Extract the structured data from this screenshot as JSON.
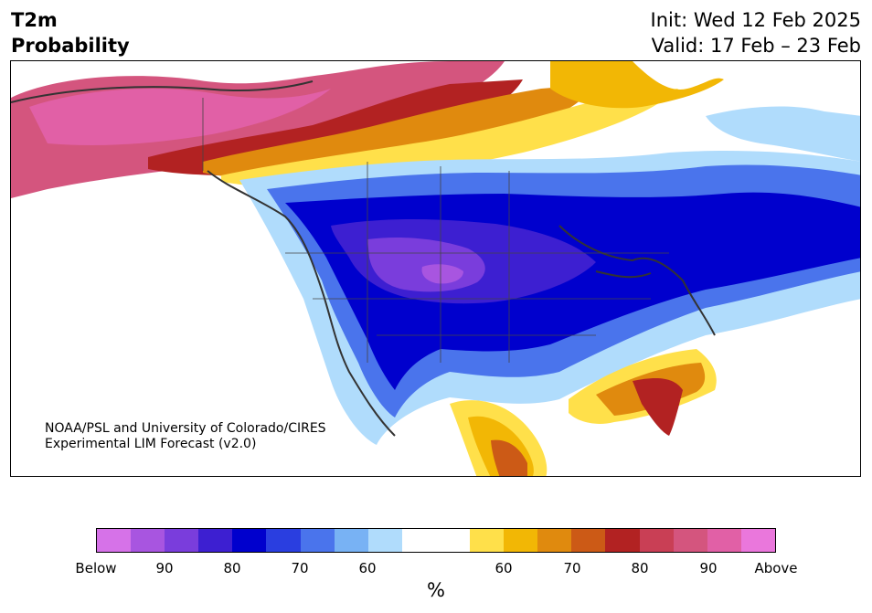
{
  "header": {
    "title_line1": "T2m",
    "title_line2": "Probability",
    "init": "Init: Wed 12 Feb 2025",
    "valid": "Valid: 17 Feb – 23 Feb"
  },
  "map": {
    "credit_line1": "NOAA/PSL and University of Colorado/CIRES",
    "credit_line2": "Experimental LIM Forecast (v2.0)",
    "region": "North America"
  },
  "colorbar": {
    "colors": [
      "#d672e8",
      "#a855e0",
      "#7a3ddc",
      "#3d1fd1",
      "#0000cd",
      "#2a3ee0",
      "#4a74ec",
      "#78b2f4",
      "#b0dcfc",
      "#ffffff",
      "#ffffff",
      "#ffe04a",
      "#f2b705",
      "#e08a0e",
      "#cc5a16",
      "#b22222",
      "#c93f55",
      "#d4557e",
      "#e160a6",
      "#ea77dc"
    ],
    "tick_labels": [
      "Below",
      "90",
      "80",
      "70",
      "60",
      "60",
      "70",
      "80",
      "90",
      "Above"
    ],
    "unit": "%"
  },
  "legend": {
    "below_colors": "purple-blue = below normal",
    "above_colors": "yellow-red-pink = above normal"
  }
}
